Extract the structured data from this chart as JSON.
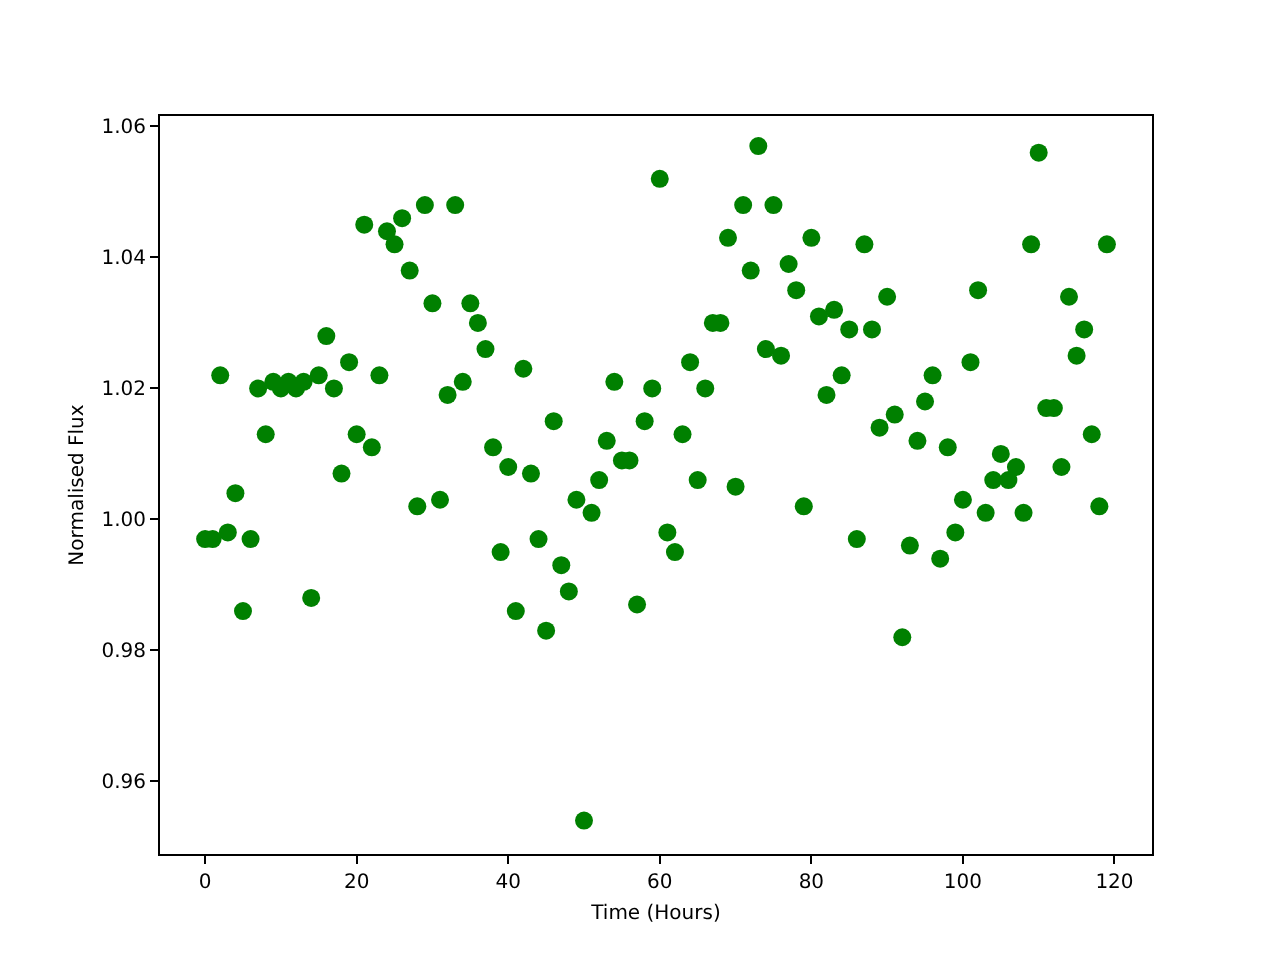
{
  "chart_data": {
    "type": "scatter",
    "xlabel": "Time (Hours)",
    "ylabel": "Normalised Flux",
    "marker": "circle",
    "x": [
      0,
      1,
      2,
      3,
      4,
      5,
      6,
      7,
      8,
      9,
      10,
      11,
      12,
      13,
      14,
      15,
      16,
      17,
      18,
      19,
      20,
      21,
      22,
      23,
      24,
      25,
      26,
      27,
      28,
      29,
      30,
      31,
      32,
      33,
      34,
      35,
      36,
      37,
      38,
      39,
      40,
      41,
      42,
      43,
      44,
      45,
      46,
      47,
      48,
      49,
      50,
      51,
      52,
      53,
      54,
      55,
      56,
      57,
      58,
      59,
      60,
      61,
      62,
      63,
      64,
      65,
      66,
      67,
      68,
      69,
      70,
      71,
      72,
      73,
      74,
      75,
      76,
      77,
      78,
      79,
      80,
      81,
      82,
      83,
      84,
      85,
      86,
      87,
      88,
      89,
      90,
      91,
      92,
      93,
      94,
      95,
      96,
      97,
      98,
      99,
      100,
      101,
      102,
      103,
      104,
      105,
      106,
      107,
      108,
      109,
      110,
      111,
      112,
      113,
      114,
      115,
      116,
      117,
      118,
      119
    ],
    "series": [
      {
        "color": "#008000",
        "values": [
          0.997,
          0.997,
          1.022,
          0.998,
          1.004,
          0.986,
          0.997,
          1.02,
          1.013,
          1.021,
          1.02,
          1.021,
          1.02,
          1.021,
          0.988,
          1.022,
          1.028,
          1.02,
          1.007,
          1.024,
          1.013,
          1.045,
          1.011,
          1.022,
          1.044,
          1.042,
          1.046,
          1.038,
          1.002,
          1.048,
          1.033,
          1.003,
          1.019,
          1.048,
          1.021,
          1.033,
          1.03,
          1.026,
          1.011,
          0.995,
          1.008,
          0.986,
          1.023,
          1.007,
          0.997,
          0.983,
          1.015,
          0.993,
          0.989,
          1.003,
          0.954,
          1.001,
          1.006,
          1.012,
          1.021,
          1.009,
          1.009,
          0.987,
          1.015,
          1.02,
          1.052,
          0.998,
          0.995,
          1.013,
          1.024,
          1.006,
          1.02,
          1.03,
          1.03,
          1.043,
          1.005,
          1.048,
          1.038,
          1.057,
          1.026,
          1.048,
          1.025,
          1.039,
          1.035,
          1.002,
          1.043,
          1.031,
          1.019,
          1.032,
          1.022,
          1.029,
          0.997,
          1.042,
          1.029,
          1.014,
          1.034,
          1.016,
          0.982,
          0.996,
          1.012,
          1.018,
          1.022,
          0.994,
          1.011,
          0.998,
          1.003,
          1.024,
          1.035,
          1.001,
          1.006,
          1.01,
          1.006,
          1.008,
          1.001,
          1.042,
          1.056,
          1.017,
          1.017,
          1.008,
          1.034,
          1.025,
          1.029,
          1.013,
          1.002,
          1.042
        ]
      }
    ],
    "xlim": [
      -5.95,
      124.95
    ],
    "xticks": [
      0,
      20,
      40,
      60,
      80,
      100,
      120
    ],
    "ylim": [
      0.9489,
      1.0616
    ],
    "yticks": [
      0.96,
      0.98,
      {
        "value": 1,
        "label": "1.00"
      },
      1.02,
      1.04,
      1.06
    ]
  }
}
